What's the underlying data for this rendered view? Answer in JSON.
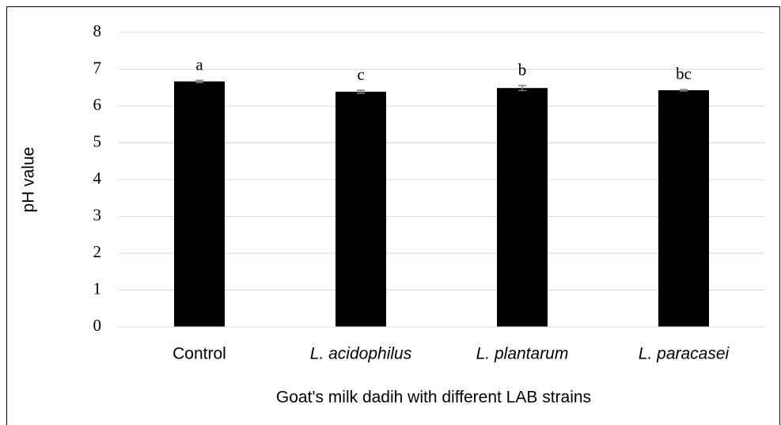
{
  "chart_data": {
    "type": "bar",
    "xlabel": "Goat's milk dadih with different LAB strains",
    "ylabel": "pH value",
    "categories": [
      "Control",
      "L. acidophilus",
      "L. plantarum",
      "L. paracasei"
    ],
    "category_italic": [
      false,
      true,
      true,
      true
    ],
    "values": [
      6.67,
      6.39,
      6.49,
      6.43
    ],
    "errors": [
      0.03,
      0.04,
      0.07,
      0.02
    ],
    "annotations": [
      "a",
      "c",
      "b",
      "bc"
    ],
    "color": "#000000",
    "ylim": [
      0,
      8
    ],
    "yticks": [
      0,
      1,
      2,
      3,
      4,
      5,
      6,
      7,
      8
    ],
    "grid": true
  }
}
